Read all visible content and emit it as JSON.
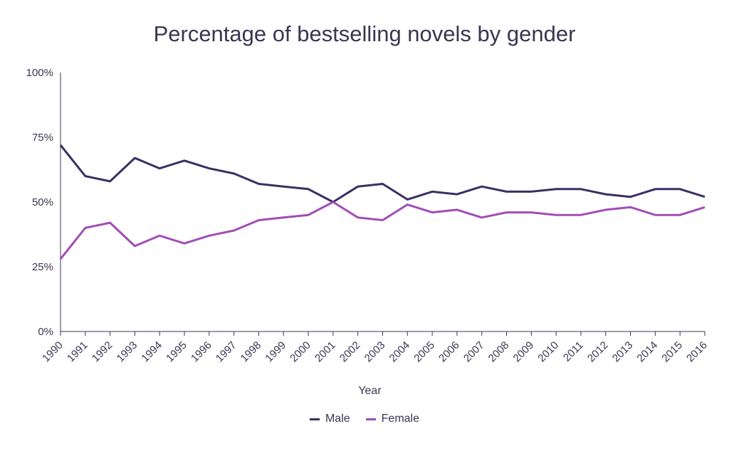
{
  "chart_data": {
    "type": "line",
    "title": "Percentage of bestselling novels by gender",
    "xlabel": "Year",
    "ylabel": "",
    "ylim": [
      0,
      100
    ],
    "yticks": [
      0,
      25,
      50,
      75,
      100
    ],
    "ytick_labels": [
      "0%",
      "25%",
      "50%",
      "75%",
      "100%"
    ],
    "categories": [
      "1990",
      "1991",
      "1992",
      "1993",
      "1994",
      "1995",
      "1996",
      "1997",
      "1998",
      "1999",
      "2000",
      "2001",
      "2002",
      "2003",
      "2004",
      "2005",
      "2006",
      "2007",
      "2008",
      "2009",
      "2010",
      "2011",
      "2012",
      "2013",
      "2014",
      "2015",
      "2016"
    ],
    "series": [
      {
        "name": "Male",
        "color": "#3b2f63",
        "values": [
          72,
          60,
          58,
          67,
          63,
          66,
          63,
          61,
          57,
          56,
          55,
          50,
          56,
          57,
          51,
          54,
          53,
          56,
          54,
          54,
          55,
          55,
          53,
          52,
          55,
          55,
          52
        ]
      },
      {
        "name": "Female",
        "color": "#a24db5",
        "values": [
          28,
          40,
          42,
          33,
          37,
          34,
          37,
          39,
          43,
          44,
          45,
          50,
          44,
          43,
          49,
          46,
          47,
          44,
          46,
          46,
          45,
          45,
          47,
          48,
          45,
          45,
          48
        ]
      }
    ],
    "grid": false,
    "legend_position": "bottom-center"
  }
}
